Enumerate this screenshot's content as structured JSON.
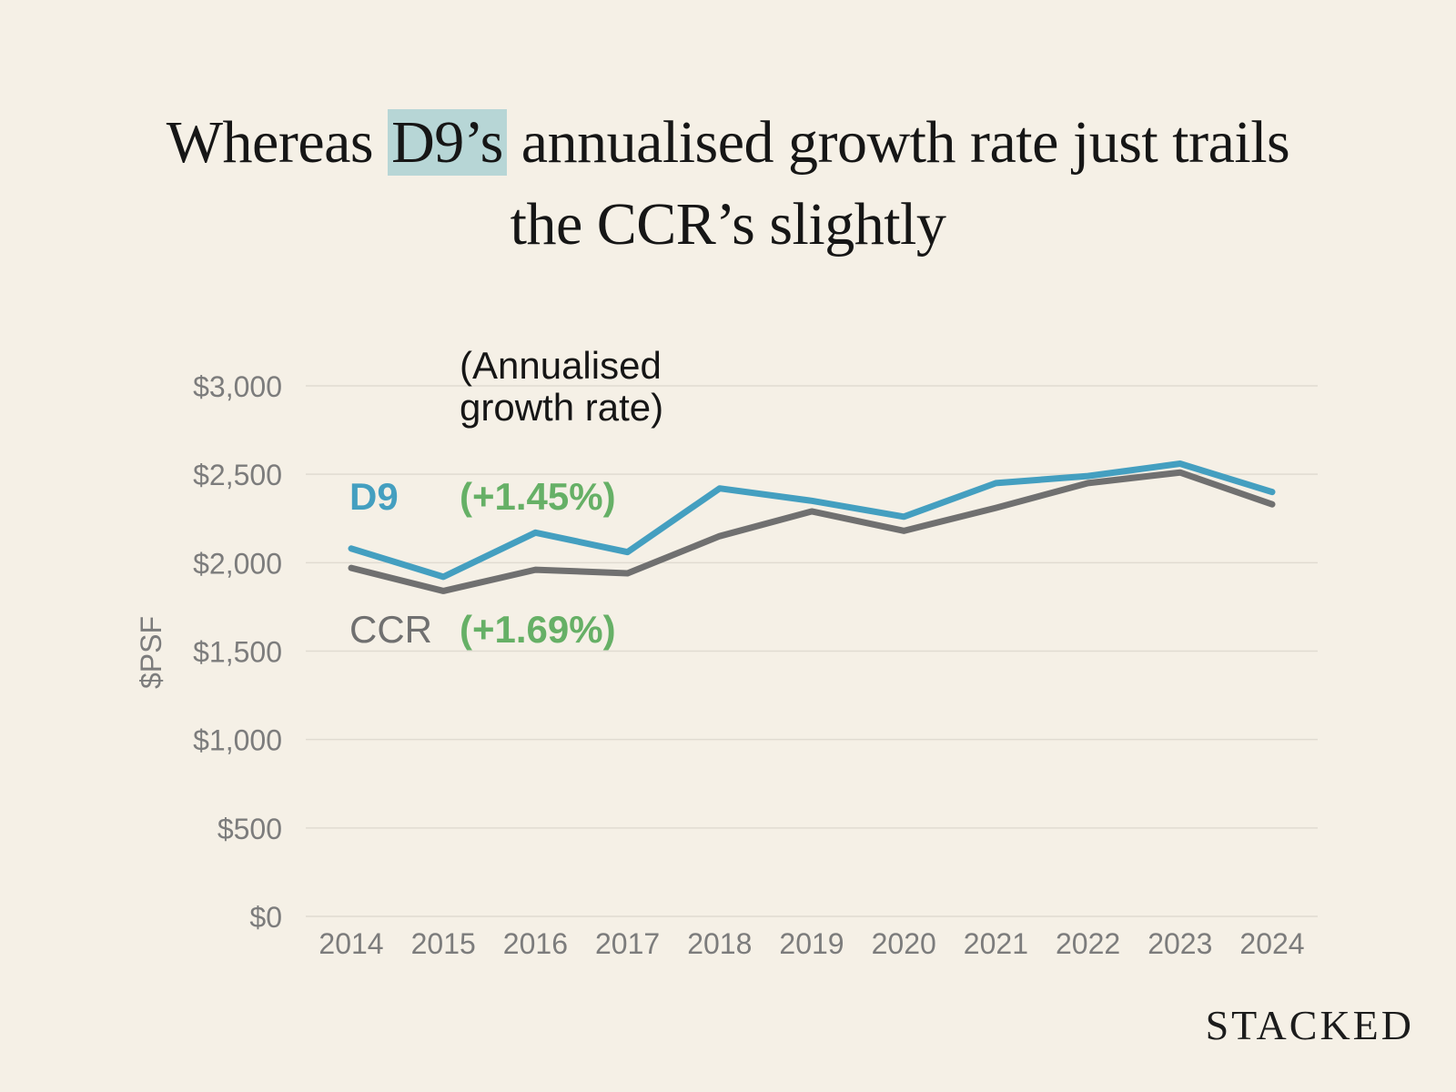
{
  "title": {
    "pre": "Whereas ",
    "highlight": "D9’s",
    "post": " annualised growth rate just trails",
    "line2": "the CCR’s slightly"
  },
  "annotation": {
    "line1": "(Annualised",
    "line2": "growth rate)"
  },
  "brand": "STACKED",
  "colors": {
    "d9": "#449fc0",
    "ccr": "#707070",
    "growth": "#66b066",
    "grid": "#e0dbd1",
    "tick": "#7c7c7c",
    "background": "#f5f0e6"
  },
  "chart_data": {
    "type": "line",
    "title": "Whereas D9’s annualised growth rate just trails the CCR’s slightly",
    "xlabel": "",
    "ylabel": "$PSF",
    "x": [
      "2014",
      "2015",
      "2016",
      "2017",
      "2018",
      "2019",
      "2020",
      "2021",
      "2022",
      "2023",
      "2024"
    ],
    "ylim": [
      0,
      3000
    ],
    "yticks": [
      0,
      500,
      1000,
      1500,
      2000,
      2500,
      3000
    ],
    "ytick_labels": [
      "$0",
      "$500",
      "$1,000",
      "$1,500",
      "$2,000",
      "$2,500",
      "$3,000"
    ],
    "grid": true,
    "series": [
      {
        "name": "D9",
        "growth_label": "(+1.45%)",
        "values": [
          2080,
          1920,
          2170,
          2060,
          2420,
          2350,
          2260,
          2450,
          2490,
          2560,
          2400
        ]
      },
      {
        "name": "CCR",
        "growth_label": "(+1.69%)",
        "values": [
          1970,
          1840,
          1960,
          1940,
          2150,
          2290,
          2180,
          2310,
          2450,
          2510,
          2330
        ]
      }
    ]
  }
}
